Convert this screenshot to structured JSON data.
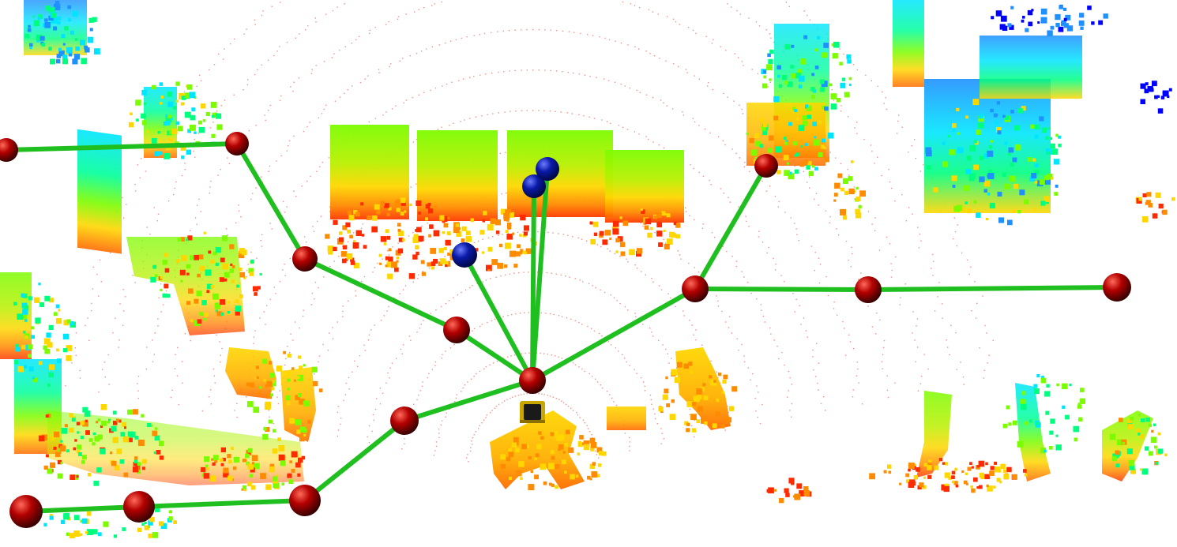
{
  "viewer": {
    "background": "#ffffff",
    "point_cloud_palette": [
      "#ff2a00",
      "#ff8c00",
      "#ffd700",
      "#7cfc00",
      "#00ff7f",
      "#00e5ff",
      "#1e90ff",
      "#0000ff"
    ],
    "edge_color": "#1fbf1f",
    "node_color": "#a00000",
    "frontier_color": "#0a1a9e",
    "robot_icon": "robot-icon",
    "graph_nodes_count": 16,
    "frontier_nodes_count": 3
  }
}
